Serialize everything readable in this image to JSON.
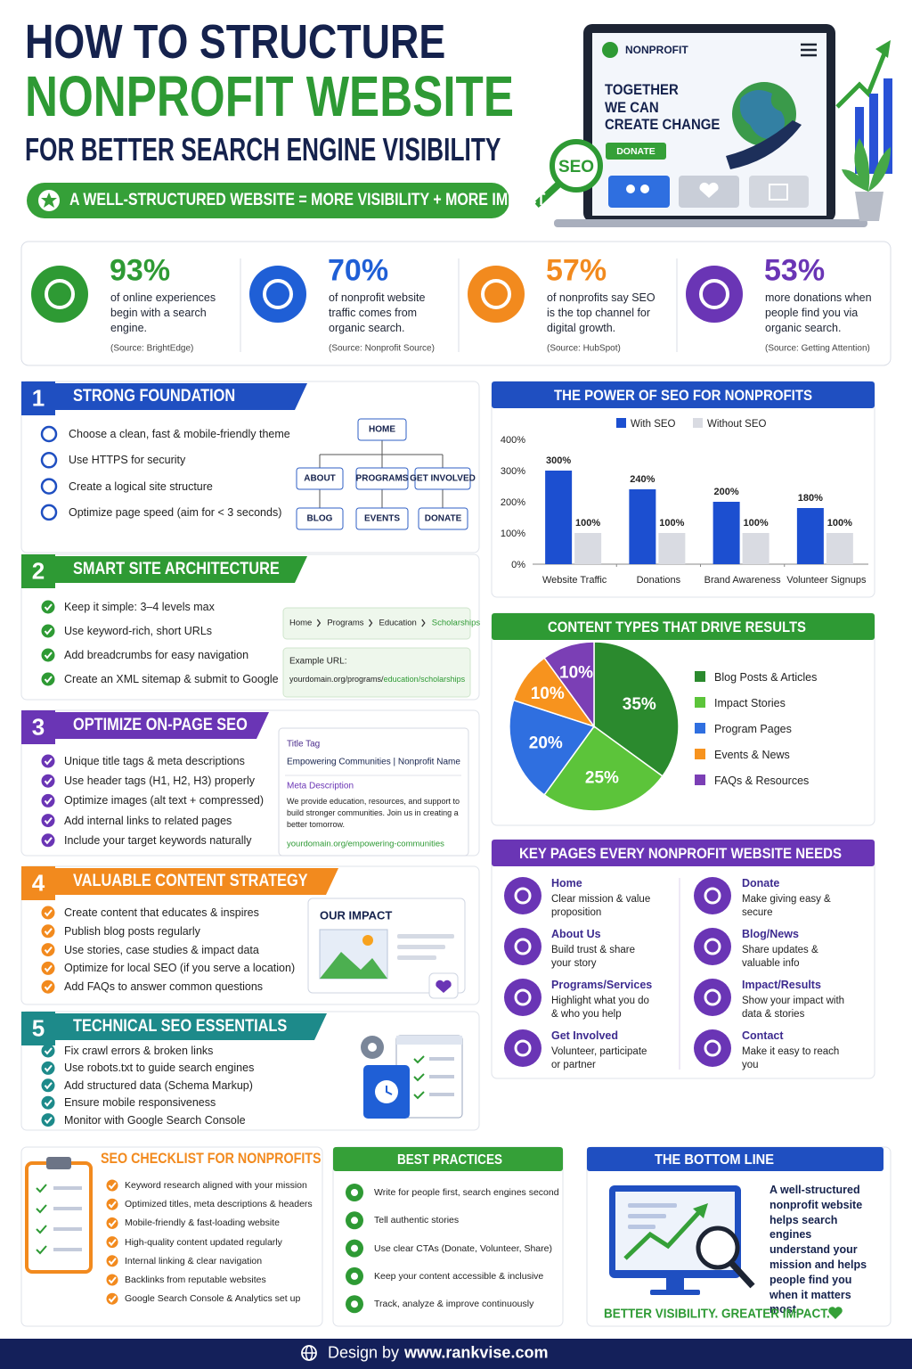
{
  "header": {
    "title_line1": "HOW TO STRUCTURE",
    "title_line2": "NONPROFIT WEBSITE",
    "title_line3": "FOR BETTER SEARCH ENGINE VISIBILITY",
    "banner": "A WELL-STRUCTURED WEBSITE = MORE VISIBILITY + MORE IMPACT"
  },
  "hero": {
    "brand": "NONPROFIT",
    "headline": [
      "TOGETHER",
      "WE CAN",
      "CREATE CHANGE"
    ],
    "button": "DONATE",
    "badge": "SEO"
  },
  "stats": [
    {
      "value": "93%",
      "text": "of online experiences begin with a search engine.",
      "source": "(Source: BrightEdge)"
    },
    {
      "value": "70%",
      "text": "of nonprofit website traffic comes from organic search.",
      "source": "(Source: Nonprofit Source)"
    },
    {
      "value": "57%",
      "text": "of nonprofits say SEO is the top channel for digital growth.",
      "source": "(Source: HubSpot)"
    },
    {
      "value": "53%",
      "text": "more donations when people find you via organic search.",
      "source": "(Source: Getting Attention)"
    }
  ],
  "steps": [
    {
      "number": "1",
      "title": "STRONG FOUNDATION",
      "items": [
        "Choose a clean, fast & mobile-friendly theme",
        "Use HTTPS for security",
        "Create a logical site structure",
        "Optimize page speed (aim for < 3 seconds)"
      ]
    },
    {
      "number": "2",
      "title": "SMART SITE ARCHITECTURE",
      "items": [
        "Keep it simple: 3–4 levels max",
        "Use keyword-rich, short URLs",
        "Add breadcrumbs for easy navigation",
        "Create an XML sitemap & submit to Google"
      ]
    },
    {
      "number": "3",
      "title": "OPTIMIZE ON-PAGE SEO",
      "items": [
        "Unique title tags & meta descriptions",
        "Use header tags (H1, H2, H3) properly",
        "Optimize images (alt text + compressed)",
        "Add internal links to related pages",
        "Include your target keywords naturally"
      ]
    },
    {
      "number": "4",
      "title": "VALUABLE CONTENT STRATEGY",
      "items": [
        "Create content that educates & inspires",
        "Publish blog posts regularly",
        "Use stories, case studies & impact data",
        "Optimize for local SEO (if you serve a location)",
        "Add FAQs to answer common questions"
      ]
    },
    {
      "number": "5",
      "title": "TECHNICAL SEO ESSENTIALS",
      "items": [
        "Fix crawl errors & broken links",
        "Use robots.txt to guide search engines",
        "Add structured data (Schema Markup)",
        "Ensure mobile responsiveness",
        "Monitor with Google Search Console"
      ]
    }
  ],
  "sitemap": {
    "root": "HOME",
    "level1": [
      "ABOUT",
      "PROGRAMS",
      "GET INVOLVED"
    ],
    "level2": [
      "BLOG",
      "EVENTS",
      "DONATE"
    ]
  },
  "breadcrumb": [
    "Home",
    "Programs",
    "Education",
    "Scholarships"
  ],
  "example_url": {
    "label": "Example URL:",
    "base": "yourdomain.org/programs/",
    "path": "education/scholarships"
  },
  "serp": {
    "title_label": "Title Tag",
    "title": "Empowering Communities | Nonprofit Name",
    "meta_label": "Meta Description",
    "meta": "We provide education, resources, and support to build stronger communities. Join us in creating a better tomorrow.",
    "url": "yourdomain.org/empowering-communities"
  },
  "impact_card": {
    "title": "OUR IMPACT"
  },
  "chart_data": [
    {
      "type": "bar",
      "title": "THE POWER OF SEO FOR NONPROFITS",
      "categories": [
        "Website Traffic",
        "Donations",
        "Brand Awareness",
        "Volunteer Signups"
      ],
      "series": [
        {
          "name": "With SEO",
          "color": "#1c4fd0",
          "values": [
            300,
            240,
            200,
            180
          ],
          "value_labels": [
            "300%",
            "240%",
            "200%",
            "180%"
          ]
        },
        {
          "name": "Without SEO",
          "color": "#d9dbe2",
          "values": [
            100,
            100,
            100,
            100
          ],
          "value_labels": [
            "100%",
            "100%",
            "100%",
            "100%"
          ]
        }
      ],
      "ylim": [
        0,
        400
      ],
      "yticks": [
        {
          "value": 0,
          "label": "0%"
        },
        {
          "value": 100,
          "label": "100%"
        },
        {
          "value": 200,
          "label": "200%"
        },
        {
          "value": 300,
          "label": "300%"
        },
        {
          "value": 400,
          "label": "400%"
        }
      ],
      "grid": false,
      "legend": "top"
    },
    {
      "type": "pie",
      "title": "CONTENT TYPES THAT DRIVE RESULTS",
      "categories": [
        "Blog Posts & Articles",
        "Impact Stories",
        "Program Pages",
        "Events & News",
        "FAQs & Resources"
      ],
      "values": [
        35,
        25,
        20,
        10,
        10
      ],
      "value_labels": [
        "35%",
        "25%",
        "20%",
        "10%",
        "10%"
      ],
      "colors": [
        "#2b8a2e",
        "#5cc43a",
        "#2f6fe0",
        "#f7931e",
        "#7b3fb5"
      ],
      "legend": "right"
    }
  ],
  "key_pages": {
    "title": "KEY PAGES EVERY NONPROFIT WEBSITE NEEDS",
    "pages": [
      {
        "name": "Home",
        "desc": "Clear mission & value proposition"
      },
      {
        "name": "About Us",
        "desc": "Build trust & share your story"
      },
      {
        "name": "Programs/Services",
        "desc": "Highlight what you do & who you help"
      },
      {
        "name": "Get Involved",
        "desc": "Volunteer, participate or partner"
      },
      {
        "name": "Donate",
        "desc": "Make giving easy & secure"
      },
      {
        "name": "Blog/News",
        "desc": "Share updates & valuable info"
      },
      {
        "name": "Impact/Results",
        "desc": "Show your impact with data & stories"
      },
      {
        "name": "Contact",
        "desc": "Make it easy to reach you"
      }
    ]
  },
  "checklist": {
    "title": "SEO CHECKLIST FOR NONPROFITS",
    "items": [
      "Keyword research aligned with your mission",
      "Optimized titles, meta descriptions & headers",
      "Mobile-friendly & fast-loading website",
      "High-quality content updated regularly",
      "Internal linking & clear navigation",
      "Backlinks from reputable websites",
      "Google Search Console & Analytics set up"
    ]
  },
  "best_practices": {
    "title": "BEST PRACTICES",
    "items": [
      "Write for people first, search engines second",
      "Tell authentic stories",
      "Use clear CTAs (Donate, Volunteer, Share)",
      "Keep your content accessible & inclusive",
      "Track, analyze & improve continuously"
    ]
  },
  "bottom_line": {
    "title": "THE BOTTOM LINE",
    "text": "A well-structured nonprofit website helps search engines understand your mission and helps people find you when it matters most.",
    "tagline": "BETTER VISIBILITY. GREATER IMPACT."
  },
  "footer": {
    "prefix": "Design by",
    "url": "www.rankvise.com"
  }
}
